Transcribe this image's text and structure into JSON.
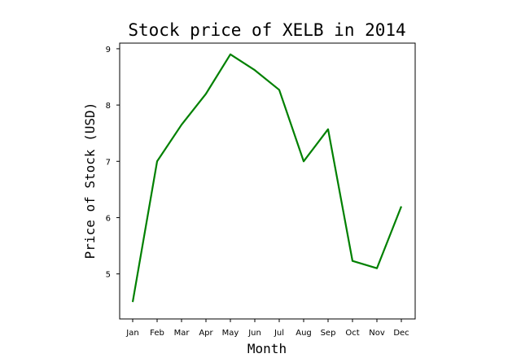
{
  "chart_data": {
    "type": "line",
    "title": "Stock price of XELB in 2014",
    "xlabel": "Month",
    "ylabel": "Price of Stock (USD)",
    "categories": [
      "Jan",
      "Feb",
      "Mar",
      "Apr",
      "May",
      "Jun",
      "Jul",
      "Aug",
      "Sep",
      "Oct",
      "Nov",
      "Dec"
    ],
    "series": [
      {
        "values": [
          4.5,
          7.0,
          7.65,
          8.2,
          8.9,
          8.62,
          8.27,
          7.0,
          7.57,
          5.23,
          5.1,
          6.2
        ]
      }
    ],
    "ylim": [
      4.2,
      9.1
    ],
    "yticks": [
      "5",
      "6",
      "7",
      "8",
      "9"
    ],
    "grid": false,
    "colors": {
      "line": "#008000"
    }
  }
}
